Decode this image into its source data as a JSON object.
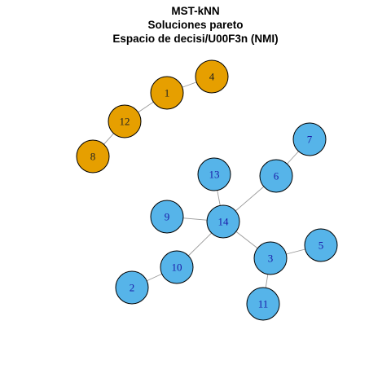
{
  "title": {
    "line1": "MST-kNN",
    "line2": "Soluciones pareto",
    "line3": "Espacio de decisi/U00F3n (NMI)"
  },
  "colors": {
    "cluster_orange_fill": "#E69F00",
    "cluster_blue_fill": "#56B4E9",
    "cluster_orange_label": "#222222",
    "cluster_blue_label": "#1a1aa8",
    "edge": "#9a9a9a",
    "node_border": "#000000"
  },
  "graph": {
    "nodes": [
      {
        "id": "1",
        "label": "1",
        "cluster": "orange"
      },
      {
        "id": "4",
        "label": "4",
        "cluster": "orange"
      },
      {
        "id": "12",
        "label": "12",
        "cluster": "orange"
      },
      {
        "id": "8",
        "label": "8",
        "cluster": "orange"
      },
      {
        "id": "7",
        "label": "7",
        "cluster": "blue"
      },
      {
        "id": "13",
        "label": "13",
        "cluster": "blue"
      },
      {
        "id": "6",
        "label": "6",
        "cluster": "blue"
      },
      {
        "id": "9",
        "label": "9",
        "cluster": "blue"
      },
      {
        "id": "14",
        "label": "14",
        "cluster": "blue"
      },
      {
        "id": "5",
        "label": "5",
        "cluster": "blue"
      },
      {
        "id": "3",
        "label": "3",
        "cluster": "blue"
      },
      {
        "id": "10",
        "label": "10",
        "cluster": "blue"
      },
      {
        "id": "2",
        "label": "2",
        "cluster": "blue"
      },
      {
        "id": "11",
        "label": "11",
        "cluster": "blue"
      }
    ],
    "edges": [
      [
        "1",
        "4"
      ],
      [
        "1",
        "12"
      ],
      [
        "12",
        "8"
      ],
      [
        "7",
        "6"
      ],
      [
        "6",
        "14"
      ],
      [
        "13",
        "14"
      ],
      [
        "9",
        "14"
      ],
      [
        "14",
        "3"
      ],
      [
        "14",
        "10"
      ],
      [
        "3",
        "5"
      ],
      [
        "3",
        "11"
      ],
      [
        "10",
        "2"
      ]
    ]
  }
}
